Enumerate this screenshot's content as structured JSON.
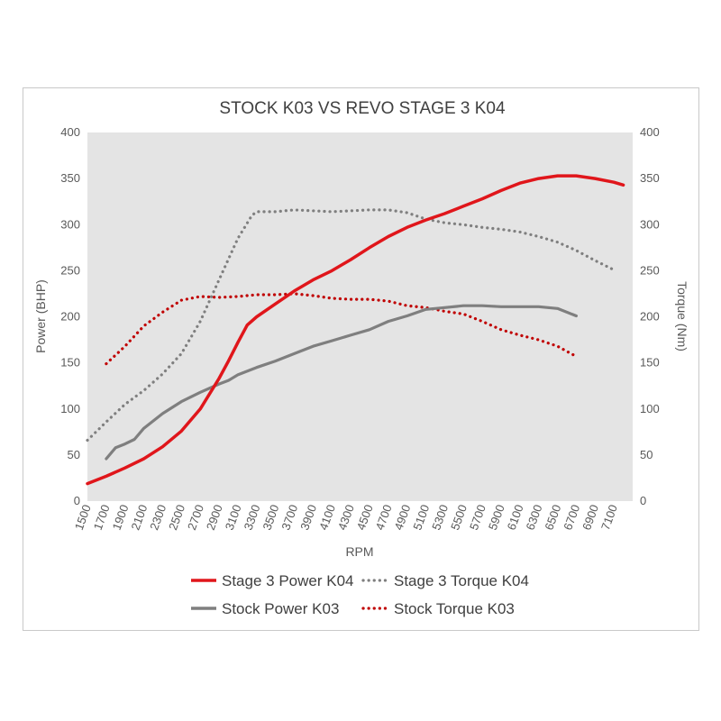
{
  "chart_data": {
    "type": "line",
    "title": "STOCK K03 VS REVO STAGE 3 K04",
    "xlabel": "RPM",
    "ylabel_left": "Power (BHP)",
    "ylabel_right": "Torque (Nm)",
    "x_ticks": [
      "1500",
      "1700",
      "1900",
      "2100",
      "2300",
      "2500",
      "2700",
      "2900",
      "3100",
      "3300",
      "3500",
      "3700",
      "3900",
      "4100",
      "4300",
      "4500",
      "4700",
      "4900",
      "5100",
      "5300",
      "5500",
      "5700",
      "5900",
      "6100",
      "6300",
      "6500",
      "6700",
      "6900",
      "7100"
    ],
    "xlim": [
      1500,
      7100
    ],
    "ylim_left": [
      0,
      400
    ],
    "ylim_right": [
      0,
      400
    ],
    "y_ticks": [
      0,
      50,
      100,
      150,
      200,
      250,
      300,
      350,
      400
    ],
    "grid": false,
    "plot_background": "#e4e4e4",
    "legend_position": "bottom",
    "series": [
      {
        "name": "Stage 3 Power K04",
        "axis": "left",
        "color": "#e0161b",
        "style": "solid",
        "points": [
          [
            1500,
            19
          ],
          [
            1700,
            27
          ],
          [
            1900,
            36
          ],
          [
            2100,
            46
          ],
          [
            2300,
            59
          ],
          [
            2500,
            76
          ],
          [
            2700,
            100
          ],
          [
            2900,
            133
          ],
          [
            3000,
            152
          ],
          [
            3100,
            172
          ],
          [
            3200,
            191
          ],
          [
            3300,
            200
          ],
          [
            3500,
            214
          ],
          [
            3700,
            228
          ],
          [
            3900,
            240
          ],
          [
            4100,
            250
          ],
          [
            4300,
            262
          ],
          [
            4500,
            275
          ],
          [
            4700,
            287
          ],
          [
            4900,
            297
          ],
          [
            5100,
            305
          ],
          [
            5300,
            312
          ],
          [
            5500,
            320
          ],
          [
            5700,
            328
          ],
          [
            5900,
            337
          ],
          [
            6100,
            345
          ],
          [
            6300,
            350
          ],
          [
            6500,
            353
          ],
          [
            6700,
            353
          ],
          [
            6900,
            350
          ],
          [
            7100,
            346
          ],
          [
            7200,
            343
          ]
        ]
      },
      {
        "name": "Stage 3 Torque K04",
        "axis": "right",
        "color": "#7f7f7f",
        "style": "dotted",
        "points": [
          [
            1500,
            66
          ],
          [
            1700,
            86
          ],
          [
            1900,
            105
          ],
          [
            2100,
            120
          ],
          [
            2300,
            138
          ],
          [
            2500,
            160
          ],
          [
            2700,
            195
          ],
          [
            2900,
            240
          ],
          [
            3100,
            285
          ],
          [
            3250,
            310
          ],
          [
            3300,
            314
          ],
          [
            3500,
            314
          ],
          [
            3700,
            316
          ],
          [
            3900,
            315
          ],
          [
            4100,
            314
          ],
          [
            4300,
            315
          ],
          [
            4500,
            316
          ],
          [
            4700,
            316
          ],
          [
            4900,
            313
          ],
          [
            5100,
            306
          ],
          [
            5300,
            302
          ],
          [
            5500,
            300
          ],
          [
            5700,
            297
          ],
          [
            5900,
            295
          ],
          [
            6100,
            292
          ],
          [
            6300,
            287
          ],
          [
            6500,
            281
          ],
          [
            6700,
            272
          ],
          [
            6900,
            261
          ],
          [
            7100,
            251
          ]
        ]
      },
      {
        "name": "Stock Power K03",
        "axis": "left",
        "color": "#7f7f7f",
        "style": "solid",
        "points": [
          [
            1700,
            46
          ],
          [
            1800,
            58
          ],
          [
            1900,
            62
          ],
          [
            2000,
            67
          ],
          [
            2100,
            79
          ],
          [
            2300,
            95
          ],
          [
            2500,
            108
          ],
          [
            2700,
            118
          ],
          [
            2900,
            127
          ],
          [
            3000,
            131
          ],
          [
            3100,
            137
          ],
          [
            3300,
            145
          ],
          [
            3500,
            152
          ],
          [
            3700,
            160
          ],
          [
            3900,
            168
          ],
          [
            4100,
            174
          ],
          [
            4300,
            180
          ],
          [
            4500,
            186
          ],
          [
            4700,
            195
          ],
          [
            4900,
            201
          ],
          [
            5100,
            208
          ],
          [
            5300,
            210
          ],
          [
            5500,
            212
          ],
          [
            5700,
            212
          ],
          [
            5900,
            211
          ],
          [
            6100,
            211
          ],
          [
            6300,
            211
          ],
          [
            6500,
            209
          ],
          [
            6700,
            201
          ]
        ]
      },
      {
        "name": "Stock Torque K03",
        "axis": "right",
        "color": "#c00000",
        "style": "dotted",
        "points": [
          [
            1700,
            149
          ],
          [
            1900,
            168
          ],
          [
            2100,
            190
          ],
          [
            2300,
            205
          ],
          [
            2500,
            218
          ],
          [
            2700,
            222
          ],
          [
            2900,
            221
          ],
          [
            3100,
            222
          ],
          [
            3300,
            224
          ],
          [
            3500,
            224
          ],
          [
            3700,
            225
          ],
          [
            3900,
            223
          ],
          [
            4100,
            220
          ],
          [
            4300,
            219
          ],
          [
            4500,
            219
          ],
          [
            4700,
            217
          ],
          [
            4900,
            212
          ],
          [
            5100,
            210
          ],
          [
            5300,
            206
          ],
          [
            5500,
            203
          ],
          [
            5700,
            195
          ],
          [
            5900,
            186
          ],
          [
            6100,
            180
          ],
          [
            6300,
            175
          ],
          [
            6500,
            168
          ],
          [
            6700,
            157
          ]
        ]
      }
    ]
  }
}
